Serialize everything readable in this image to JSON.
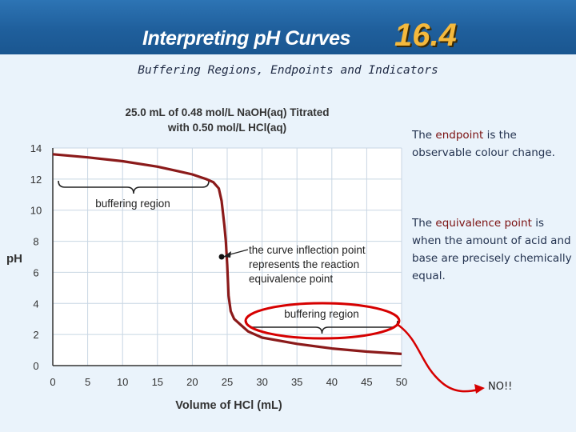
{
  "banner": {
    "title": "Interpreting pH Curves",
    "section_number": "16.4"
  },
  "subtitle": "Buffering Regions, Endpoints and Indicators",
  "notes": {
    "endpoint": {
      "prefix": "The ",
      "term": "endpoint",
      "suffix": " is the observable colour change."
    },
    "equivalence": {
      "prefix": "The ",
      "term": "equivalence point",
      "suffix": " is when the amount of acid and base are precisely chemically equal."
    },
    "no_label": "NO!!"
  },
  "colors": {
    "curve": "#8b1a1a",
    "circle": "#d60000",
    "arrow": "#d60000",
    "grid": "#c8d6e3"
  },
  "chart_data": {
    "type": "line",
    "title_lines": [
      "25.0 mL of 0.48 mol/L NaOH(aq) Titrated",
      "with 0.50 mol/L HCl(aq)"
    ],
    "xlabel": "Volume of HCl (mL)",
    "ylabel": "pH",
    "xlim": [
      0,
      50
    ],
    "ylim": [
      0,
      14
    ],
    "x_ticks": [
      0,
      5,
      10,
      15,
      20,
      25,
      30,
      35,
      40,
      45,
      50
    ],
    "y_ticks": [
      0,
      2,
      4,
      6,
      8,
      10,
      12,
      14
    ],
    "grid": true,
    "series": [
      {
        "x": [
          0,
          5,
          10,
          15,
          18,
          20,
          22,
          23,
          23.8,
          24.2,
          24.6,
          24.8,
          25.0,
          25.2,
          25.5,
          26,
          27,
          28,
          30,
          35,
          40,
          45,
          50
        ],
        "y": [
          13.6,
          13.4,
          13.15,
          12.8,
          12.5,
          12.3,
          12.0,
          11.8,
          11.4,
          10.6,
          9.0,
          8.0,
          6.5,
          4.5,
          3.5,
          3.0,
          2.6,
          2.2,
          1.8,
          1.4,
          1.1,
          0.9,
          0.75
        ]
      }
    ],
    "equivalence_point": {
      "x": 24.2,
      "y": 7.0
    },
    "annotations": [
      {
        "text": "buffering region",
        "x": 17.5,
        "y": 11.4
      },
      {
        "text_lines": [
          "the curve inflection point",
          "represents the reaction",
          "equivalence point"
        ]
      },
      {
        "text": "buffering region",
        "x": 38.5,
        "y": 3.2
      }
    ]
  }
}
